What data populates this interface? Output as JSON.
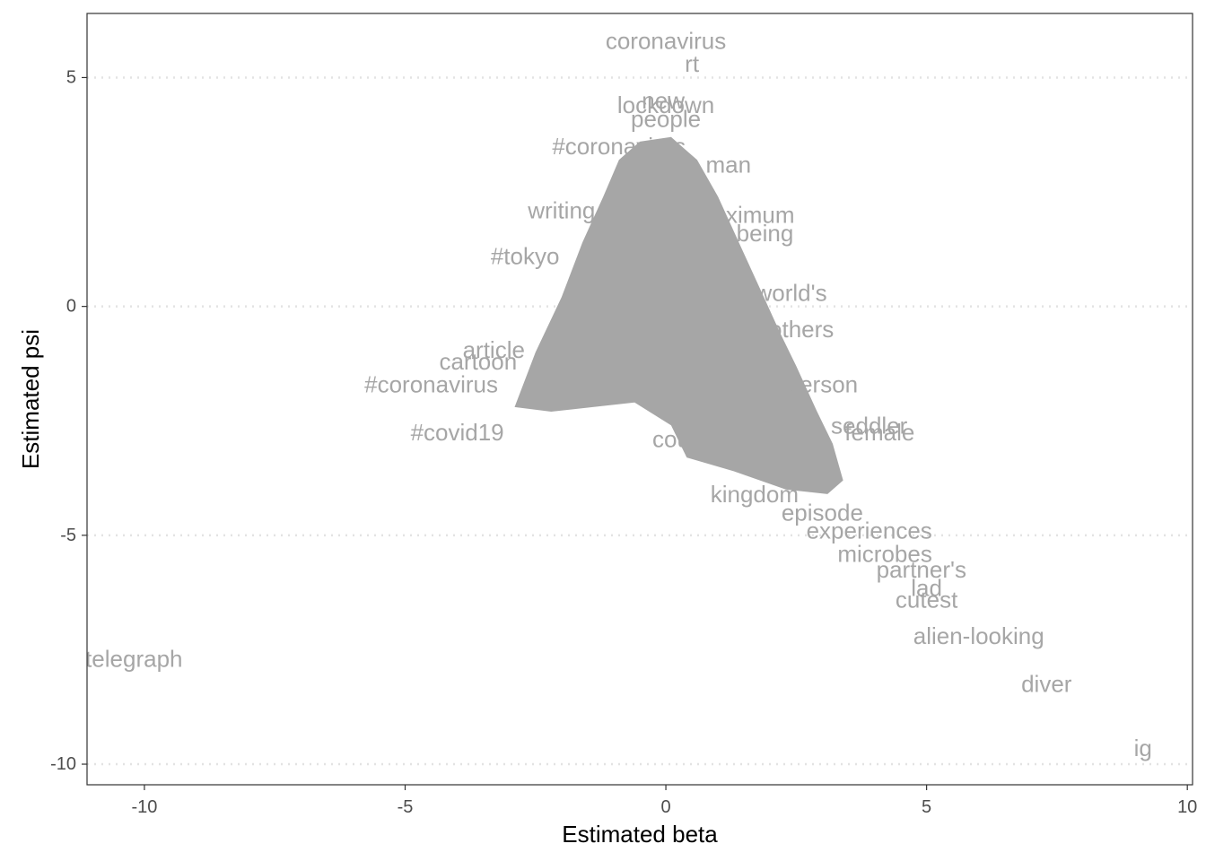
{
  "chart_data": {
    "type": "scatter",
    "title": "",
    "xlabel": "Estimated beta",
    "ylabel": "Estimated psi",
    "xlim": [
      -11.1,
      10.1
    ],
    "ylim": [
      -10.45,
      6.4
    ],
    "x_ticks": [
      -10,
      -5,
      0,
      5,
      10
    ],
    "x_tick_labels": [
      "-10",
      "-5",
      "0",
      "5",
      "10"
    ],
    "y_ticks": [
      -10,
      -5,
      0,
      5
    ],
    "y_tick_labels": [
      "-10",
      "-5",
      "0",
      "5"
    ],
    "grid": "horizontal dotted at y ticks",
    "marker": "text labels",
    "label_color": "#a6a6a6",
    "dense_region_color": "#a6a6a6",
    "dense_region_outline": [
      [
        -2.9,
        -2.2
      ],
      [
        -2.5,
        -1.0
      ],
      [
        -2.0,
        0.2
      ],
      [
        -1.6,
        1.4
      ],
      [
        -1.2,
        2.4
      ],
      [
        -0.9,
        3.2
      ],
      [
        -0.5,
        3.6
      ],
      [
        0.1,
        3.7
      ],
      [
        0.6,
        3.2
      ],
      [
        1.0,
        2.4
      ],
      [
        1.4,
        1.4
      ],
      [
        1.8,
        0.4
      ],
      [
        2.2,
        -0.6
      ],
      [
        2.5,
        -1.3
      ],
      [
        2.9,
        -2.3
      ],
      [
        3.2,
        -3.0
      ],
      [
        3.4,
        -3.8
      ],
      [
        3.1,
        -4.1
      ],
      [
        2.3,
        -4.0
      ],
      [
        1.3,
        -3.6
      ],
      [
        0.4,
        -3.3
      ],
      [
        0.1,
        -2.6
      ],
      [
        -0.6,
        -2.1
      ],
      [
        -1.4,
        -2.2
      ],
      [
        -2.2,
        -2.3
      ]
    ],
    "points": [
      {
        "label": "coronavirus",
        "x": 0.0,
        "y": 5.8
      },
      {
        "label": "rt",
        "x": 0.5,
        "y": 5.3
      },
      {
        "label": "new",
        "x": -0.05,
        "y": 4.5
      },
      {
        "label": "lockdown",
        "x": 0.0,
        "y": 4.4
      },
      {
        "label": "people",
        "x": 0.0,
        "y": 4.1
      },
      {
        "label": "#coronavirus",
        "x": -0.9,
        "y": 3.5
      },
      {
        "label": "man",
        "x": 1.2,
        "y": 3.1
      },
      {
        "label": "maximum",
        "x": 1.5,
        "y": 2.0
      },
      {
        "label": "being",
        "x": 1.9,
        "y": 1.6
      },
      {
        "label": "#tokyo",
        "x": -2.7,
        "y": 1.1
      },
      {
        "label": "writing",
        "x": -2.0,
        "y": 2.1
      },
      {
        "label": "world's",
        "x": 2.4,
        "y": 0.3
      },
      {
        "label": "others",
        "x": 2.6,
        "y": -0.5
      },
      {
        "label": "article",
        "x": -3.3,
        "y": -0.95
      },
      {
        "label": "cartoon",
        "x": -3.6,
        "y": -1.2
      },
      {
        "label": "#coronavirus",
        "x": -4.5,
        "y": -1.7
      },
      {
        "label": "person",
        "x": 3.0,
        "y": -1.7
      },
      {
        "label": "seddler",
        "x": 3.9,
        "y": -2.6
      },
      {
        "label": "female",
        "x": 4.1,
        "y": -2.75
      },
      {
        "label": "#covid19",
        "x": -4.0,
        "y": -2.75
      },
      {
        "label": "couple",
        "x": 0.4,
        "y": -2.9
      },
      {
        "label": "kingdom",
        "x": 1.7,
        "y": -4.1
      },
      {
        "label": "episode",
        "x": 3.0,
        "y": -4.5
      },
      {
        "label": "experiences",
        "x": 3.9,
        "y": -4.9
      },
      {
        "label": "microbes",
        "x": 4.2,
        "y": -5.4
      },
      {
        "label": "partner's",
        "x": 4.9,
        "y": -5.75
      },
      {
        "label": "lad",
        "x": 5.0,
        "y": -6.15
      },
      {
        "label": "cutest",
        "x": 5.0,
        "y": -6.4
      },
      {
        "label": "alien-looking",
        "x": 6.0,
        "y": -7.2
      },
      {
        "label": "diver",
        "x": 7.3,
        "y": -8.25
      },
      {
        "label": "telegraph",
        "x": -10.2,
        "y": -7.7
      },
      {
        "label": "ig",
        "x": 9.15,
        "y": -9.65
      }
    ]
  }
}
